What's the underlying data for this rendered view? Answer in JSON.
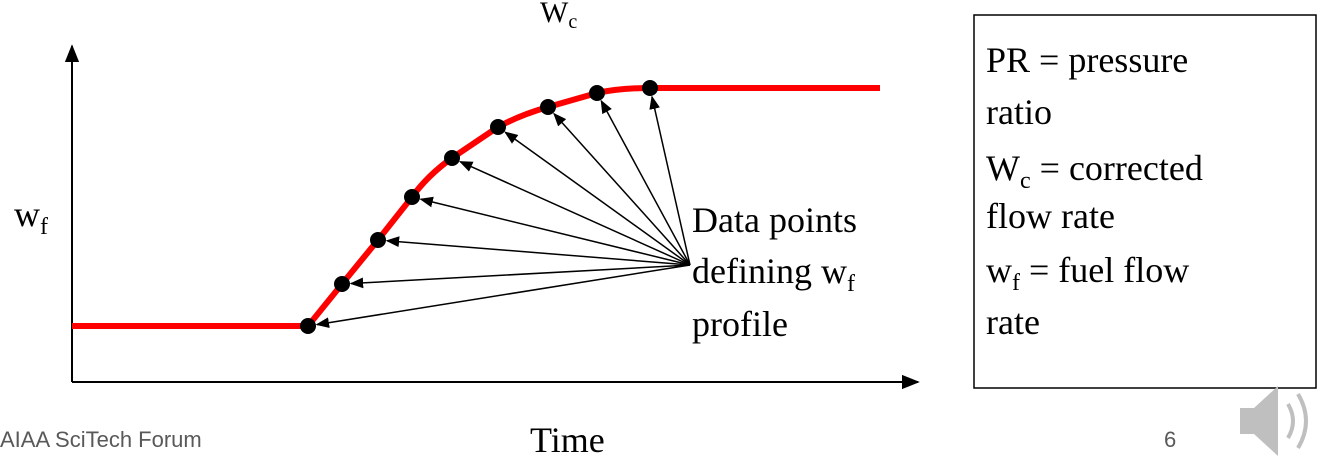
{
  "diagram": {
    "top_label": {
      "main": "W",
      "sub": "c"
    },
    "y_label": {
      "main": "w",
      "sub": "f"
    },
    "x_label": "Time",
    "annotation": {
      "line1": "Data points",
      "line2_main": "defining w",
      "line2_sub": "f",
      "line3": "profile"
    },
    "legend": {
      "pr_line1": "PR = pressure",
      "pr_line2": "ratio",
      "wc_main": "W",
      "wc_sub": "c",
      "wc_rest": " = corrected",
      "wc_line2": "flow rate",
      "wf_main": "w",
      "wf_sub": "f",
      "wf_rest": " = fuel flow",
      "wf_line2": "rate"
    }
  },
  "footer": {
    "conference": "AIAA SciTech Forum",
    "page": "6"
  }
}
